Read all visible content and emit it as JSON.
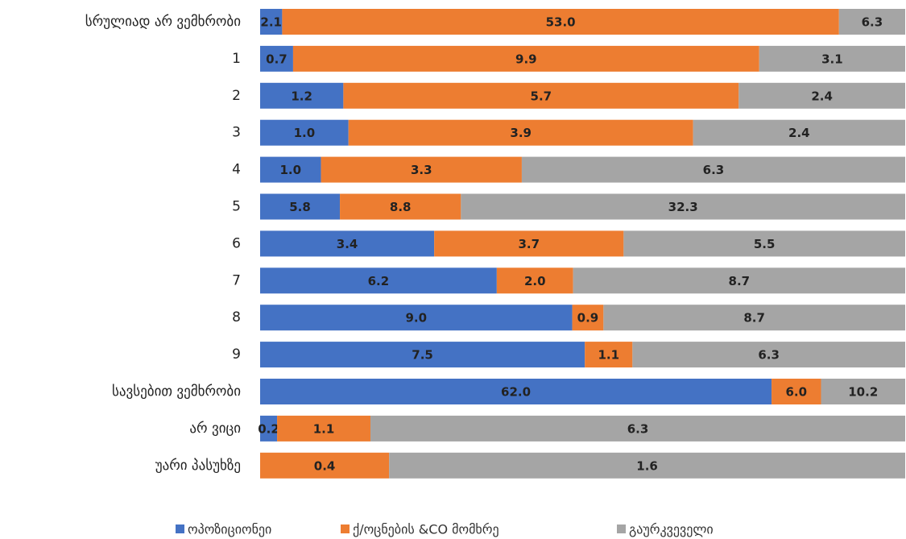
{
  "chart_data": {
    "type": "bar",
    "orientation": "horizontal",
    "stacked": "percent",
    "legend": "bottom",
    "categories": [
      "სრულიად არ ვემხრობი",
      "1",
      "2",
      "3",
      "4",
      "5",
      "6",
      "7",
      "8",
      "9",
      "სავსებით ვემხრობი",
      "არ ვიცი",
      "უარი პასუხზე"
    ],
    "series": [
      {
        "name": "ოპოზიციონეი",
        "color": "#4472c4",
        "values": [
          2.1,
          0.7,
          1.2,
          1.0,
          1.0,
          5.8,
          3.4,
          6.2,
          9.0,
          7.5,
          62.0,
          0.2,
          null
        ],
        "value_labels": [
          "2.1",
          "0.7",
          "1.2",
          "1.0",
          "1.0",
          "5.8",
          "3.4",
          "6.2",
          "9.0",
          "7.5",
          "62.0",
          "0.2",
          null
        ]
      },
      {
        "name": "ქ/ოცნების &CO მომხრე",
        "color": "#ed7d31",
        "values": [
          53.0,
          9.9,
          5.7,
          3.9,
          3.3,
          8.8,
          3.7,
          2.0,
          0.9,
          1.1,
          6.0,
          1.1,
          0.4
        ],
        "value_labels": [
          "53.0",
          "9.9",
          "5.7",
          "3.9",
          "3.3",
          "8.8",
          "3.7",
          "2.0",
          "0.9",
          "1.1",
          "6.0",
          "1.1",
          "0.4"
        ]
      },
      {
        "name": "გაურკვეველი",
        "color": "#a5a5a5",
        "values": [
          6.3,
          3.1,
          2.4,
          2.4,
          6.3,
          32.3,
          5.5,
          8.7,
          8.7,
          6.3,
          10.2,
          6.3,
          1.6
        ],
        "value_labels": [
          "6.3",
          "3.1",
          "2.4",
          "2.4",
          "6.3",
          "32.3",
          "5.5",
          "8.7",
          "8.7",
          "6.3",
          "10.2",
          "6.3",
          "1.6"
        ]
      }
    ]
  }
}
